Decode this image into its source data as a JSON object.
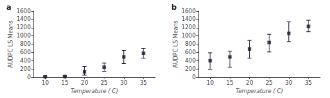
{
  "chart_data": [
    {
      "type": "scatter",
      "title": "a",
      "x": [
        10,
        15,
        20,
        25,
        30,
        35
      ],
      "values": [
        10,
        15,
        130,
        240,
        490,
        580
      ],
      "yerr_low": [
        10,
        10,
        80,
        100,
        160,
        120
      ],
      "yerr_high": [
        20,
        20,
        130,
        100,
        160,
        120
      ],
      "xlabel": "Temperature ( C)",
      "ylabel": "AUDPC LS Means",
      "xlim": [
        7,
        38
      ],
      "xticks": [
        10,
        15,
        20,
        25,
        30,
        35
      ],
      "ylim": [
        0,
        1600
      ],
      "yticks": [
        0,
        200,
        400,
        600,
        800,
        1000,
        1200,
        1400,
        1600
      ],
      "color": "#1a1a2e",
      "marker": "square",
      "grid": false
    },
    {
      "type": "scatter",
      "title": "b",
      "x": [
        10,
        15,
        20,
        25,
        30,
        35
      ],
      "values": [
        400,
        490,
        680,
        840,
        1060,
        1230
      ],
      "yerr_low": [
        210,
        250,
        220,
        230,
        200,
        130
      ],
      "yerr_high": [
        190,
        140,
        210,
        200,
        280,
        150
      ],
      "xlabel": "Temperature ( C)",
      "ylabel": "AUDPC LS Means",
      "xlim": [
        7,
        38
      ],
      "xticks": [
        10,
        15,
        20,
        25,
        30,
        35
      ],
      "ylim": [
        0,
        1600
      ],
      "yticks": [
        0,
        200,
        400,
        600,
        800,
        1000,
        1200,
        1400,
        1600
      ],
      "color": "#1a1a2e",
      "marker": "square",
      "grid": false
    }
  ]
}
